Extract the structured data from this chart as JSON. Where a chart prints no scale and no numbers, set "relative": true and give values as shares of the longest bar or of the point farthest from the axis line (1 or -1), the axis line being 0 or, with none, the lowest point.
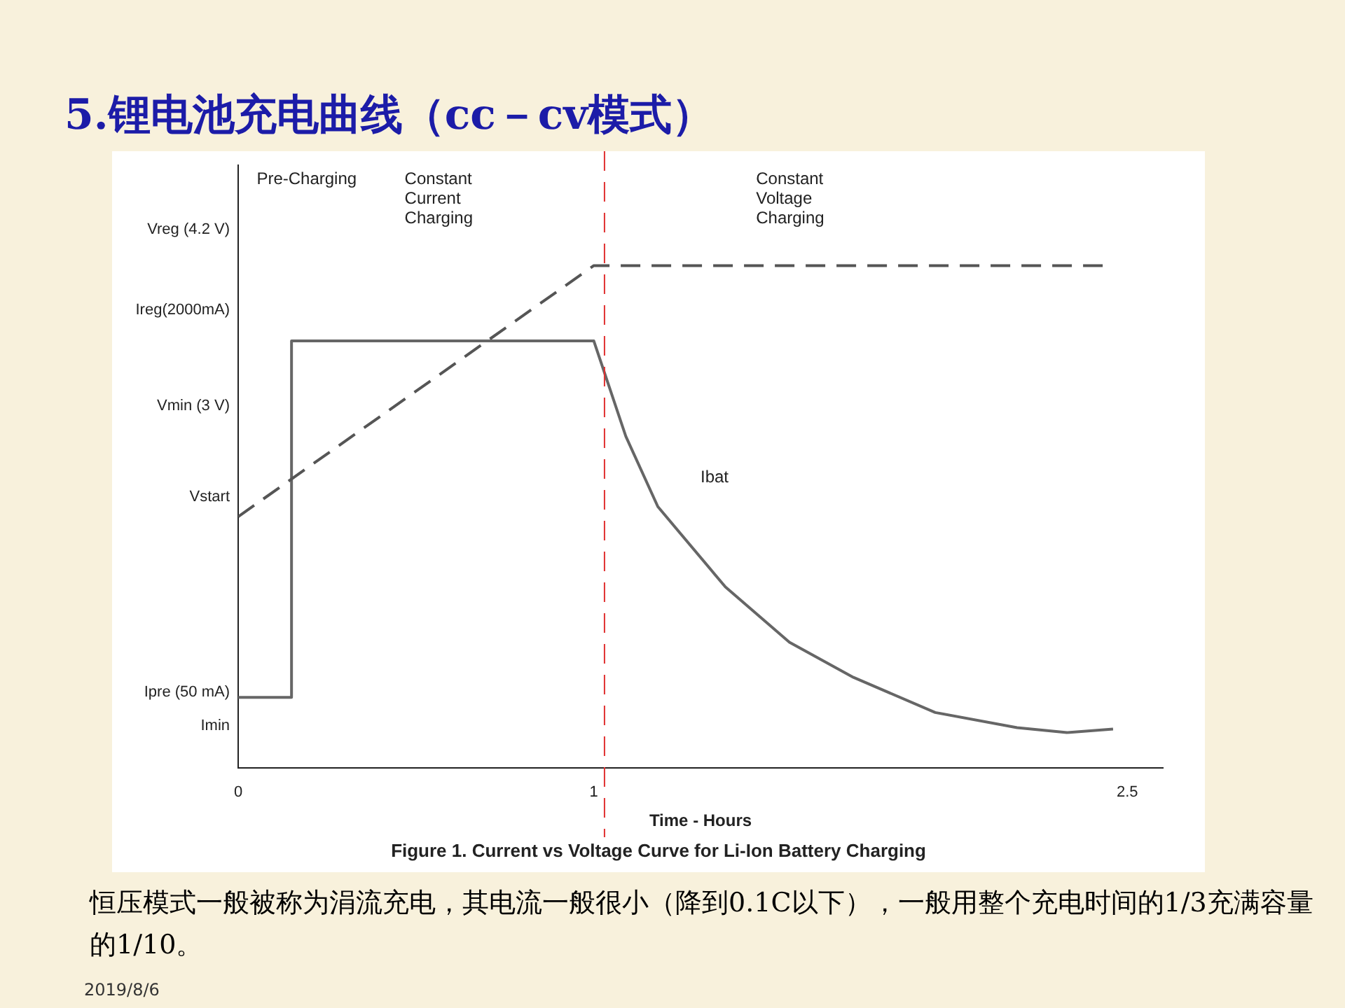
{
  "chart_data": {
    "type": "line",
    "title": "5.锂电池充电曲线（cc－cv模式）",
    "xlabel": "Time - Hours",
    "xlim": [
      0,
      2.6
    ],
    "xticks": [
      0,
      1,
      2.5
    ],
    "relative": true,
    "grid": false,
    "legend": false,
    "marker": "none",
    "series": [
      {
        "color": "#555555",
        "line_style": "dashed",
        "x": [
          0,
          1,
          2.45
        ],
        "values": [
          0.5,
          1.0,
          1.0
        ]
      },
      {
        "color": "#666666",
        "line_style": "solid",
        "x": [
          0,
          0.15,
          0.15,
          1,
          1.09,
          1.18,
          1.37,
          1.55,
          1.73,
          1.96,
          2.19,
          2.33,
          2.46
        ],
        "values": [
          0.14,
          0.14,
          0.85,
          0.85,
          0.66,
          0.52,
          0.36,
          0.25,
          0.18,
          0.11,
          0.08,
          0.07,
          0.077
        ]
      }
    ],
    "ref_lines": [
      {
        "axis": "x",
        "value": 1.03,
        "color": "#e03030",
        "line_style": "dashed"
      }
    ],
    "annotations": [
      "Vreg (4.2 V)",
      "Ireg(2000mA)",
      "Vmin (3 V)",
      "Vstart",
      "Ipre (50 mA)",
      "Imin",
      "Ibat",
      "Pre-Charging",
      "Constant Current Charging",
      "Constant Voltage Charging",
      "Figure 1. Current vs Voltage Curve for Li-Ion Battery Charging",
      "恒压模式一般被称为涓流充电，其电流一般很小（降到0.1C以下），一般用整个充电时间的1/3充满容量的1/10。",
      "2019/8/6"
    ]
  }
}
